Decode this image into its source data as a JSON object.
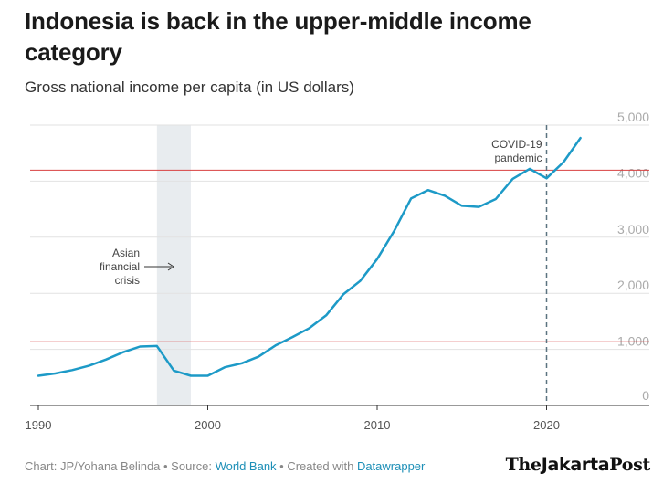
{
  "title": "Indonesia is back in the upper-middle income category",
  "subtitle": "Gross national income per capita (in US dollars)",
  "chart_data": {
    "type": "line",
    "title": "Indonesia is back in the upper-middle income category",
    "subtitle": "Gross national income per capita (in US dollars)",
    "xlim": [
      1990,
      2026
    ],
    "ylim": [
      0,
      5000
    ],
    "x_ticks": [
      "1990",
      "2000",
      "2010",
      "2020"
    ],
    "x_tick_values": [
      1990,
      2000,
      2010,
      2020
    ],
    "y_ticks": [
      "0",
      "1,000",
      "2,000",
      "3,000",
      "4,000",
      "5,000"
    ],
    "y_tick_values": [
      0,
      1000,
      2000,
      3000,
      4000,
      5000
    ],
    "grid": true,
    "line_color": "#1d9ac7",
    "series": [
      {
        "x": [
          1990,
          1991,
          1992,
          1993,
          1994,
          1995,
          1996,
          1997,
          1998,
          1999,
          2000,
          2001,
          2002,
          2003,
          2004,
          2005,
          2006,
          2007,
          2008,
          2009,
          2010,
          2011,
          2012,
          2013,
          2014,
          2015,
          2016,
          2017,
          2018,
          2019,
          2020,
          2021,
          2022
        ],
        "values": [
          530,
          570,
          630,
          710,
          820,
          950,
          1050,
          1060,
          620,
          530,
          530,
          680,
          750,
          870,
          1070,
          1220,
          1380,
          1610,
          1980,
          2220,
          2610,
          3110,
          3690,
          3840,
          3740,
          3560,
          3540,
          3680,
          4040,
          4220,
          4050,
          4340,
          4770
        ]
      }
    ],
    "reference_lines": [
      {
        "value": 1135,
        "color": "#d84040"
      },
      {
        "value": 4195,
        "color": "#d84040"
      }
    ],
    "shaded_ranges": [
      {
        "from": 1997,
        "to": 1999,
        "label": "Asian financial crisis",
        "color": "#e8ecef"
      }
    ],
    "annotations": [
      {
        "x": 2020,
        "label": "COVID-19 pandemic",
        "style": "dashed-vertical"
      },
      {
        "label": "Asian financial crisis",
        "style": "arrow"
      }
    ],
    "annotation_text": {
      "crisis_lines": [
        "Asian",
        "financial",
        "crisis"
      ],
      "covid_lines": [
        "COVID-19",
        "pandemic"
      ]
    }
  },
  "footer": {
    "prefix": "Chart: JP/Yohana Belinda • Source: ",
    "source_link": "World Bank",
    "middle": " • Created with ",
    "tool_link": "Datawrapper"
  },
  "logo": {
    "part1": "The",
    "part2": "Jakarta",
    "part3": "Post"
  }
}
